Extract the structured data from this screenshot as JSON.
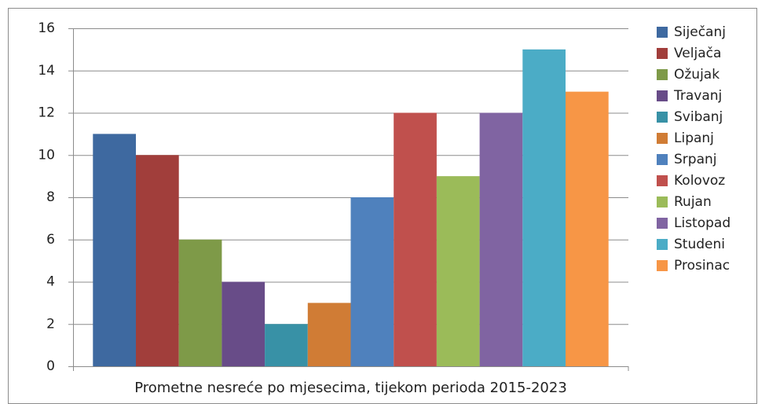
{
  "chart_data": {
    "type": "bar",
    "categories": [
      "Prometne nesreće po mjesecima, tijekom perioda 2015-2023"
    ],
    "series": [
      {
        "name": "Siječanj",
        "color": "#3e69a0",
        "values": [
          11
        ]
      },
      {
        "name": "Veljača",
        "color": "#a13e3b",
        "values": [
          10
        ]
      },
      {
        "name": "Ožujak",
        "color": "#7e9a48",
        "values": [
          6
        ]
      },
      {
        "name": "Travanj",
        "color": "#684c88",
        "values": [
          4
        ]
      },
      {
        "name": "Svibanj",
        "color": "#3891a6",
        "values": [
          2
        ]
      },
      {
        "name": "Lipanj",
        "color": "#d07c35",
        "values": [
          3
        ]
      },
      {
        "name": "Srpanj",
        "color": "#4f81bd",
        "values": [
          8
        ]
      },
      {
        "name": "Kolovoz",
        "color": "#c0504d",
        "values": [
          12
        ]
      },
      {
        "name": "Rujan",
        "color": "#9bbb59",
        "values": [
          9
        ]
      },
      {
        "name": "Listopad",
        "color": "#8064a2",
        "values": [
          12
        ]
      },
      {
        "name": "Studeni",
        "color": "#4bacc6",
        "values": [
          15
        ]
      },
      {
        "name": "Prosinac",
        "color": "#f79646",
        "values": [
          13
        ]
      }
    ],
    "ylim": [
      0,
      16
    ],
    "yticks": [
      0,
      2,
      4,
      6,
      8,
      10,
      12,
      14,
      16
    ],
    "grid": true,
    "legend": "right"
  }
}
